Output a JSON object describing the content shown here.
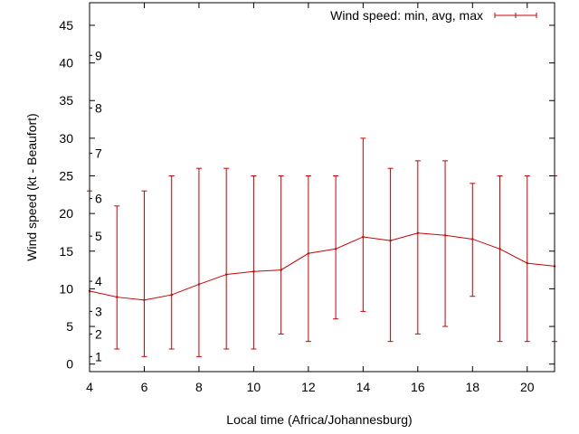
{
  "chart_data": {
    "type": "line",
    "title": "",
    "xlabel": "Local time (Africa/Johannesburg)",
    "ylabel": "Wind speed (kt - Beaufort)",
    "xlim": [
      4,
      21
    ],
    "ylim": [
      -1,
      48
    ],
    "x_ticks": [
      4,
      6,
      8,
      10,
      12,
      14,
      16,
      18,
      20
    ],
    "y_ticks": [
      0,
      5,
      10,
      15,
      20,
      25,
      30,
      35,
      40,
      45
    ],
    "beaufort_labels": [
      {
        "label": "1",
        "kt": 1
      },
      {
        "label": "2",
        "kt": 4
      },
      {
        "label": "3",
        "kt": 7
      },
      {
        "label": "4",
        "kt": 11
      },
      {
        "label": "5",
        "kt": 17
      },
      {
        "label": "6",
        "kt": 22
      },
      {
        "label": "7",
        "kt": 28
      },
      {
        "label": "8",
        "kt": 34
      },
      {
        "label": "9",
        "kt": 41
      }
    ],
    "grid": false,
    "legend_position": "top-right",
    "series": [
      {
        "name": "Wind speed: min, avg, max",
        "color": "#cc0000",
        "x": [
          4,
          5,
          6,
          7,
          8,
          9,
          10,
          11,
          12,
          13,
          14,
          15,
          16,
          17,
          18,
          19,
          20,
          21
        ],
        "avg": [
          9.7,
          8.9,
          8.5,
          9.2,
          10.6,
          11.9,
          12.3,
          12.5,
          14.7,
          15.3,
          16.9,
          16.4,
          17.4,
          17.1,
          16.6,
          15.3,
          13.4,
          13.0
        ],
        "min": [
          null,
          2,
          1,
          2,
          1,
          2,
          2,
          4,
          3,
          6,
          7,
          3,
          4,
          5,
          9,
          3,
          3,
          3
        ],
        "max": [
          23,
          21,
          23,
          25,
          26,
          26,
          25,
          25,
          25,
          25,
          30,
          26,
          27,
          27,
          24,
          25,
          25,
          25
        ]
      }
    ]
  }
}
